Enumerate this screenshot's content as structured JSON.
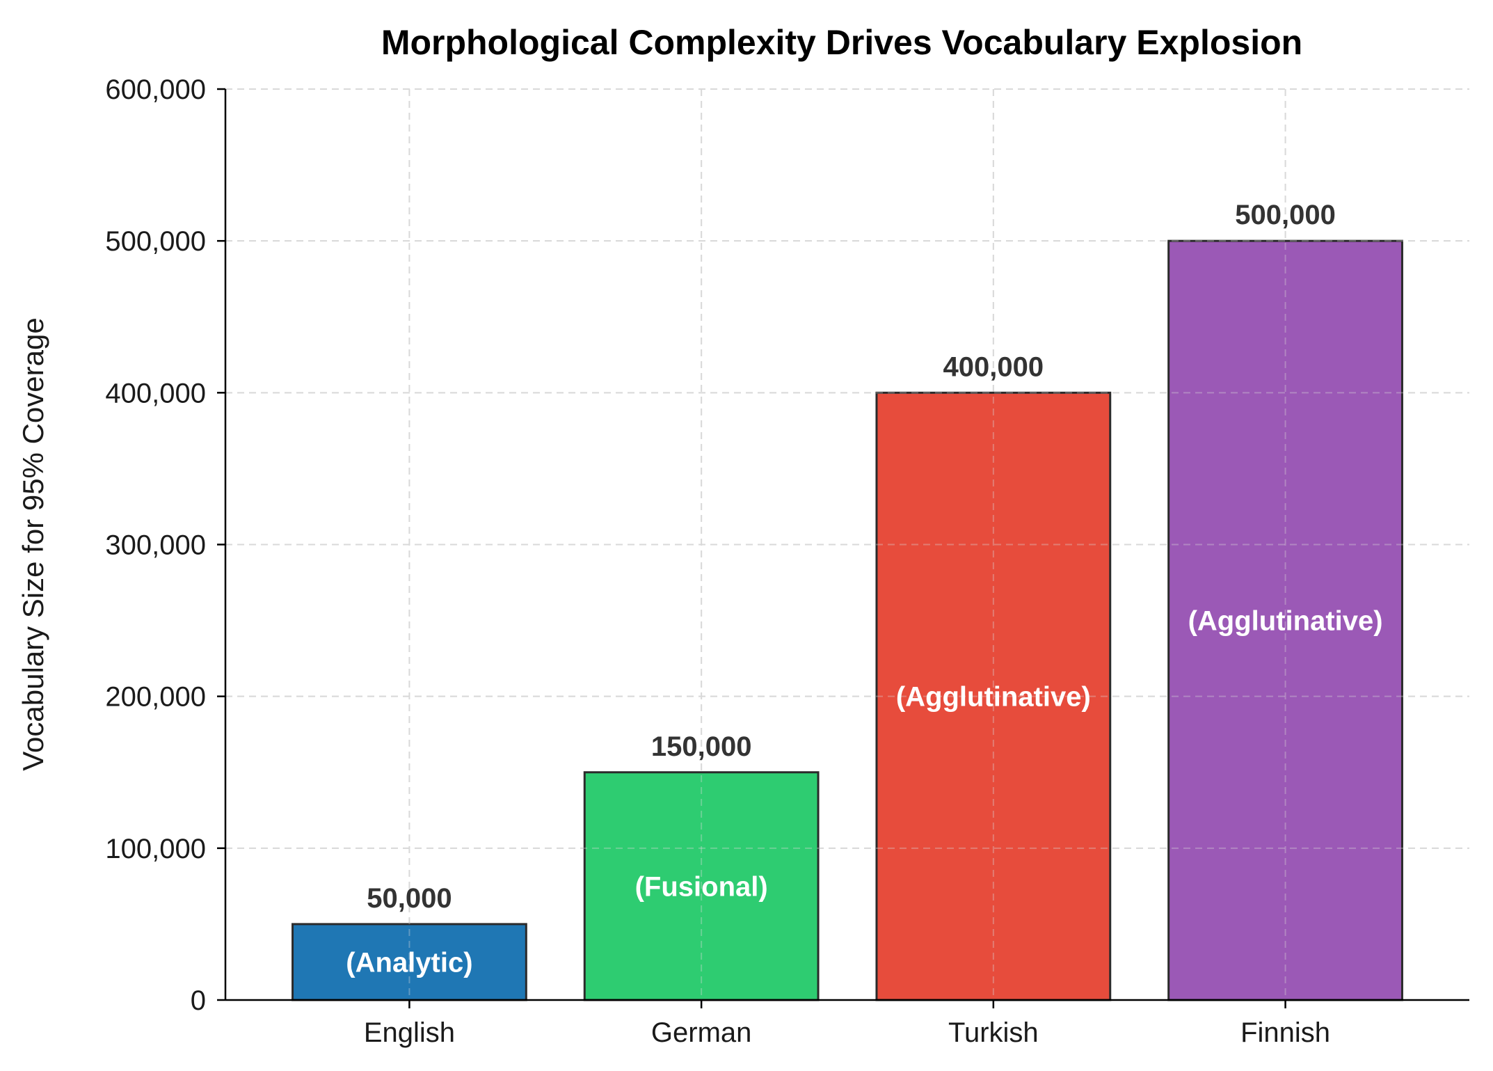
{
  "chart_data": {
    "type": "bar",
    "title": "Morphological Complexity Drives Vocabulary Explosion",
    "xlabel": "",
    "ylabel": "Vocabulary Size for 95% Coverage",
    "categories": [
      "English",
      "German",
      "Turkish",
      "Finnish"
    ],
    "values": [
      50000,
      150000,
      400000,
      500000
    ],
    "value_labels": [
      "50,000",
      "150,000",
      "400,000",
      "500,000"
    ],
    "bar_annotations": [
      "(Analytic)",
      "(Fusional)",
      "(Agglutinative)",
      "(Agglutinative)"
    ],
    "colors": [
      "#1f77b4",
      "#2ecc71",
      "#e74c3c",
      "#9b59b6"
    ],
    "ylim": [
      0,
      600000
    ],
    "yticks": [
      0,
      100000,
      200000,
      300000,
      400000,
      500000,
      600000
    ],
    "ytick_labels": [
      "0",
      "100,000",
      "200,000",
      "300,000",
      "400,000",
      "500,000",
      "600,000"
    ],
    "grid": true,
    "legend": "none"
  }
}
